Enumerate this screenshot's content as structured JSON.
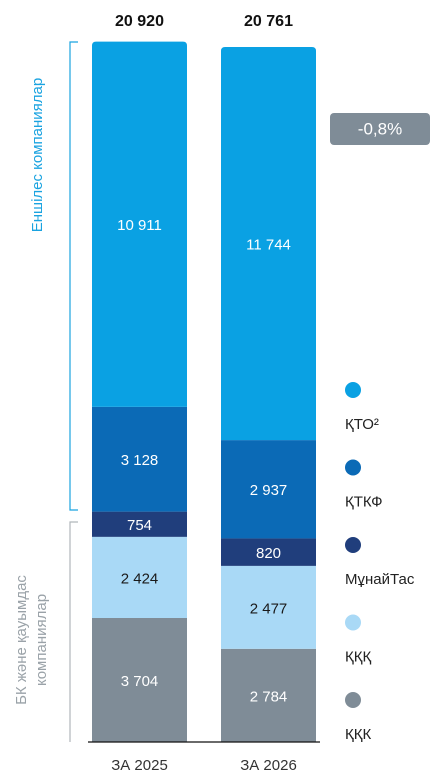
{
  "chart_data": {
    "type": "stacked_bar",
    "categories": [
      "ЗА 2025",
      "ЗА 2026"
    ],
    "totals": [
      20920,
      20761
    ],
    "total_labels": [
      "20 920",
      "20 761"
    ],
    "ylim": [
      0,
      21000
    ],
    "series": [
      {
        "name": "ҚҚК",
        "color": "#7f8c97",
        "label_color": "#ffffff",
        "values": [
          3704,
          2784
        ],
        "value_labels": [
          "3 704",
          "2 784"
        ]
      },
      {
        "name": "ҚҚҚ",
        "color": "#a9d9f6",
        "label_color": "#1a1a1a",
        "values": [
          2424,
          2477
        ],
        "value_labels": [
          "2 424",
          "2 477"
        ]
      },
      {
        "name": "МұнайТас",
        "color": "#203e7c",
        "label_color": "#ffffff",
        "values": [
          754,
          820
        ],
        "value_labels": [
          "754",
          "820"
        ]
      },
      {
        "name": "ҚТКФ",
        "color": "#0b6ab6",
        "label_color": "#ffffff",
        "values": [
          3128,
          2937
        ],
        "value_labels": [
          "3 128",
          "2 937"
        ]
      },
      {
        "name": "ҚТО²",
        "color": "#0aa1e3",
        "label_color": "#ffffff",
        "values": [
          10911,
          11744
        ],
        "value_labels": [
          "10 911",
          "11 744"
        ]
      }
    ],
    "change_label": "-0,8%",
    "group_labels": {
      "subsidiaries": "Еншілес компаниялар",
      "joint_ventures": [
        "БК және қауымдас",
        "компаниялар"
      ]
    }
  }
}
